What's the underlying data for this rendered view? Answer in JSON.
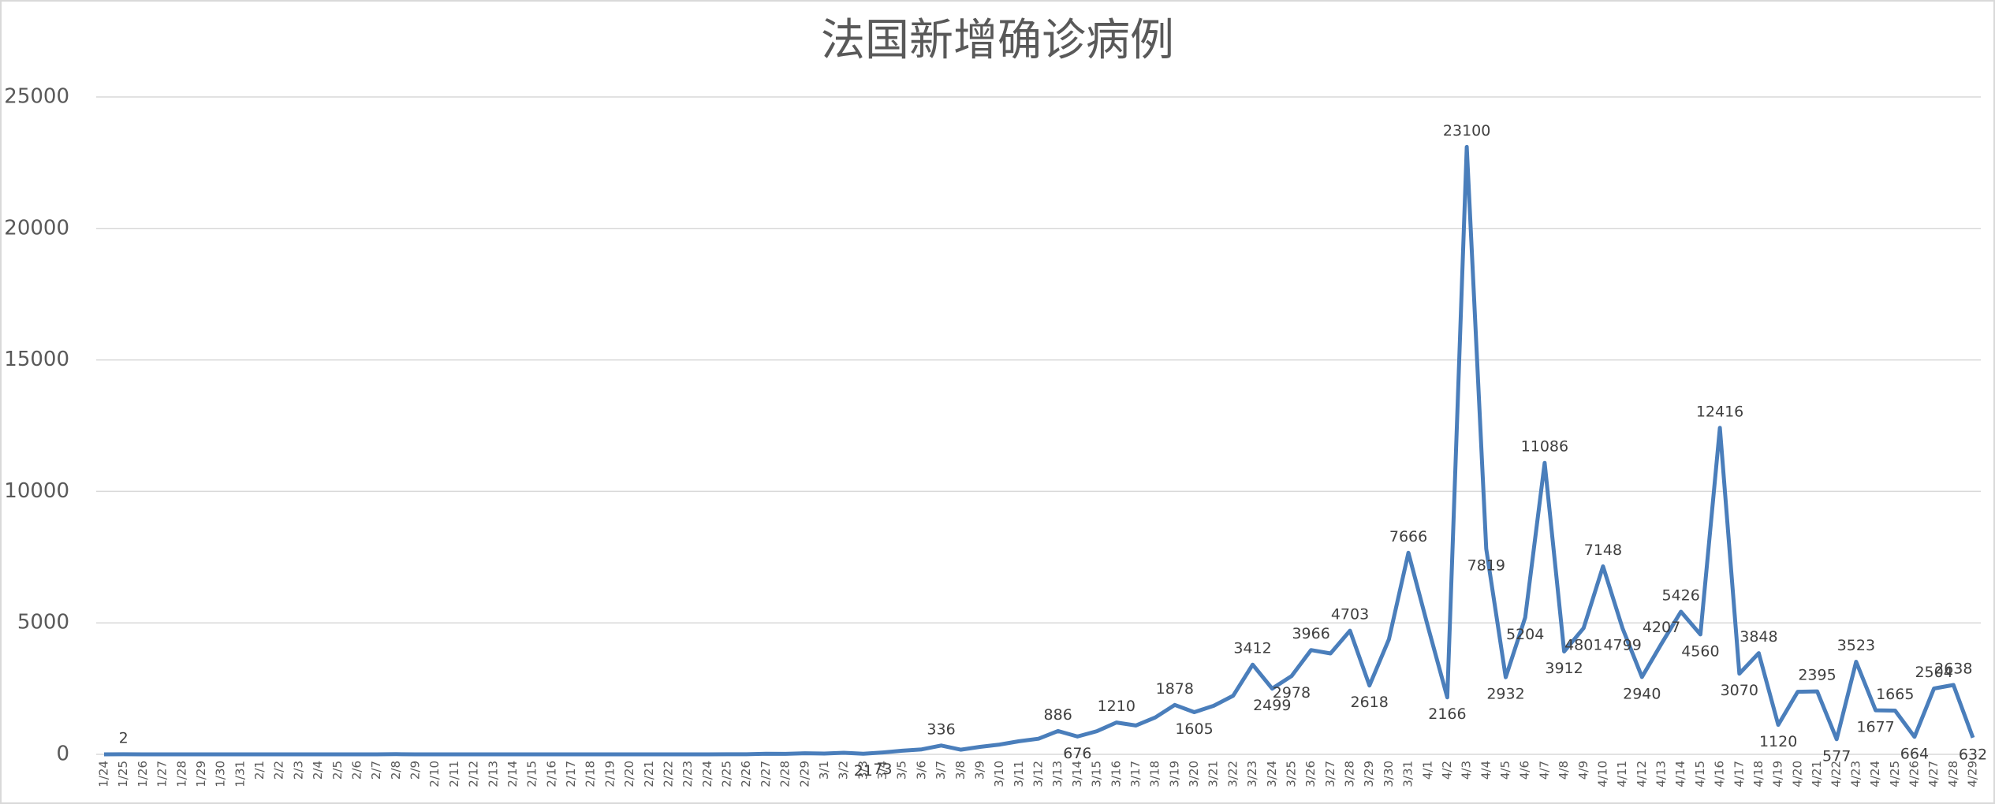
{
  "chart_data": {
    "type": "line",
    "title": "法国新增确诊病例",
    "categories": [
      "1/24",
      "1/25",
      "1/26",
      "1/27",
      "1/28",
      "1/29",
      "1/30",
      "1/31",
      "2/1",
      "2/2",
      "2/3",
      "2/4",
      "2/5",
      "2/6",
      "2/7",
      "2/8",
      "2/9",
      "2/10",
      "2/11",
      "2/12",
      "2/13",
      "2/14",
      "2/15",
      "2/16",
      "2/17",
      "2/18",
      "2/19",
      "2/20",
      "2/21",
      "2/22",
      "2/23",
      "2/24",
      "2/25",
      "2/26",
      "2/27",
      "2/28",
      "2/29",
      "3/1",
      "3/2",
      "3/3",
      "3/4",
      "3/5",
      "3/6",
      "3/7",
      "3/8",
      "3/9",
      "3/10",
      "3/11",
      "3/12",
      "3/13",
      "3/14",
      "3/15",
      "3/16",
      "3/17",
      "3/18",
      "3/19",
      "3/20",
      "3/21",
      "3/22",
      "3/23",
      "3/24",
      "3/25",
      "3/26",
      "3/27",
      "3/28",
      "3/29",
      "3/30",
      "3/31",
      "4/1",
      "4/2",
      "4/3",
      "4/4",
      "4/5",
      "4/6",
      "4/7",
      "4/8",
      "4/9",
      "4/10",
      "4/11",
      "4/12",
      "4/13",
      "4/14",
      "4/15",
      "4/16",
      "4/17",
      "4/18",
      "4/19",
      "4/20",
      "4/21",
      "4/22",
      "4/23",
      "4/24",
      "4/25",
      "4/26",
      "4/27",
      "4/28",
      "4/29"
    ],
    "series": [
      {
        "color": "#4a7ebb",
        "values": [
          0,
          2,
          0,
          0,
          0,
          1,
          0,
          1,
          0,
          0,
          0,
          0,
          0,
          0,
          0,
          5,
          0,
          0,
          0,
          0,
          0,
          0,
          1,
          0,
          0,
          0,
          0,
          0,
          0,
          0,
          0,
          0,
          2,
          4,
          20,
          19,
          43,
          30,
          61,
          21,
          73,
          138,
          190,
          336,
          177,
          286,
          372,
          497,
          595,
          886,
          676,
          880,
          1210,
          1097,
          1404,
          1878,
          1605,
          1847,
          2230,
          3412,
          2499,
          2978,
          3966,
          3838,
          4703,
          2618,
          4376,
          7666,
          4861,
          2166,
          23100,
          7819,
          2932,
          5204,
          11086,
          3912,
          4801,
          7148,
          4799,
          2940,
          4207,
          5426,
          4560,
          12416,
          3070,
          3848,
          1120,
          2380,
          2395,
          577,
          3523,
          1677,
          1665,
          664,
          2504,
          2638,
          632
        ],
        "value_labels": [
          null,
          "2",
          null,
          null,
          null,
          null,
          null,
          null,
          null,
          null,
          null,
          null,
          null,
          null,
          null,
          null,
          null,
          null,
          null,
          null,
          null,
          null,
          null,
          null,
          null,
          null,
          null,
          null,
          null,
          null,
          null,
          null,
          null,
          null,
          null,
          null,
          null,
          null,
          null,
          "21",
          "73",
          null,
          null,
          "336",
          null,
          null,
          null,
          null,
          null,
          "886",
          "676",
          null,
          "1210",
          null,
          null,
          "1878",
          "1605",
          null,
          null,
          "3412",
          "2499",
          "2978",
          "3966",
          null,
          "4703",
          "2618",
          null,
          "7666",
          null,
          "2166",
          "23100",
          "7819",
          "2932",
          "5204",
          "11086",
          "3912",
          "4801",
          "7148",
          "4799",
          "2940",
          "4207",
          "5426",
          "4560",
          "12416",
          "3070",
          "3848",
          "1120",
          null,
          "2395",
          "577",
          "3523",
          "1677",
          "1665",
          "664",
          "2504",
          "2638",
          "632"
        ]
      }
    ],
    "ylim": [
      0,
      25000
    ],
    "yticks": [
      0,
      5000,
      10000,
      15000,
      20000,
      25000
    ],
    "grid": true
  }
}
